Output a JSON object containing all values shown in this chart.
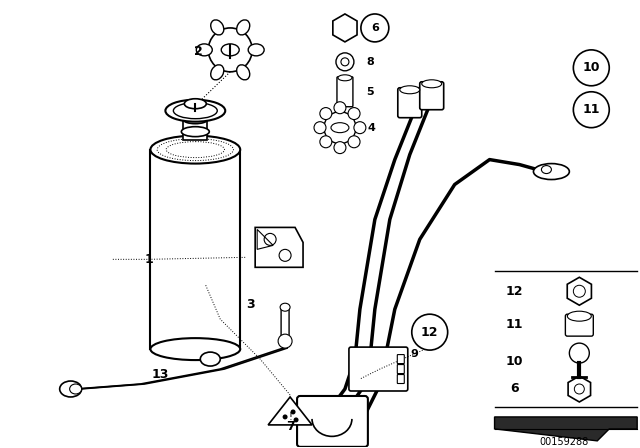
{
  "background_color": "#ffffff",
  "line_color": "#000000",
  "doc_number": "00159288",
  "figsize": [
    6.4,
    4.48
  ],
  "dpi": 100
}
